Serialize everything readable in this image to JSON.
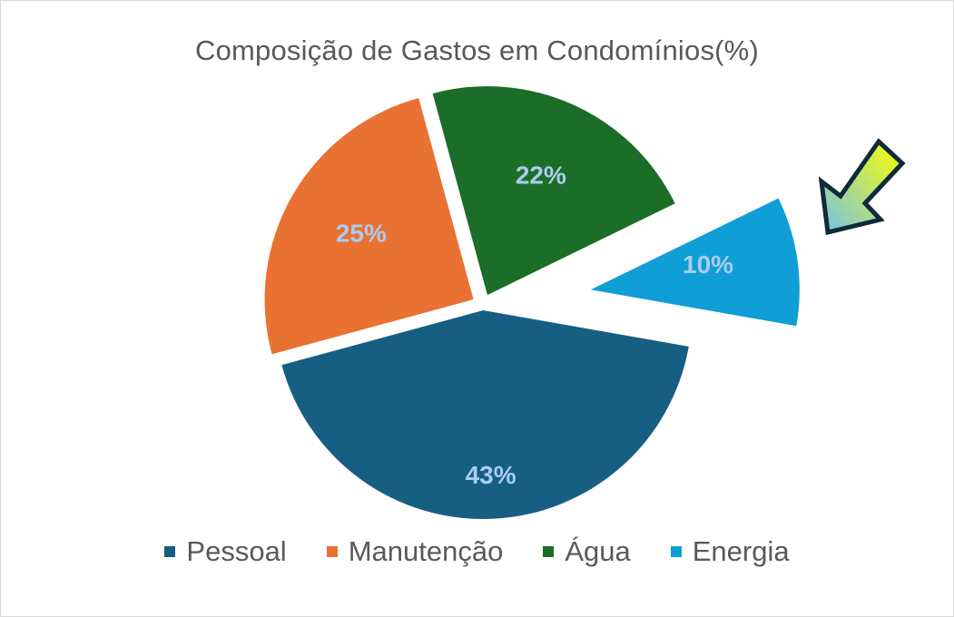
{
  "chart_data": {
    "type": "pie",
    "title": "Composição de Gastos em Condomínios(%)",
    "categories": [
      "Pessoal",
      "Manutenção",
      "Água",
      "Energia"
    ],
    "values": [
      43,
      25,
      22,
      10
    ],
    "labels": [
      "43%",
      "25%",
      "22%",
      "10%"
    ],
    "colors": [
      "#175f82",
      "#e97132",
      "#1b6d27",
      "#0f9ed5"
    ],
    "exploded": [
      "Energia"
    ],
    "legend_position": "bottom",
    "annotation": "gradient arrow pointing at Energia slice"
  },
  "colors": {
    "label_text": "#a9cdef",
    "title_text": "#595959",
    "arrow_start": "#ffff00",
    "arrow_end": "#73c2ea",
    "arrow_outline": "#0e2a3b"
  }
}
